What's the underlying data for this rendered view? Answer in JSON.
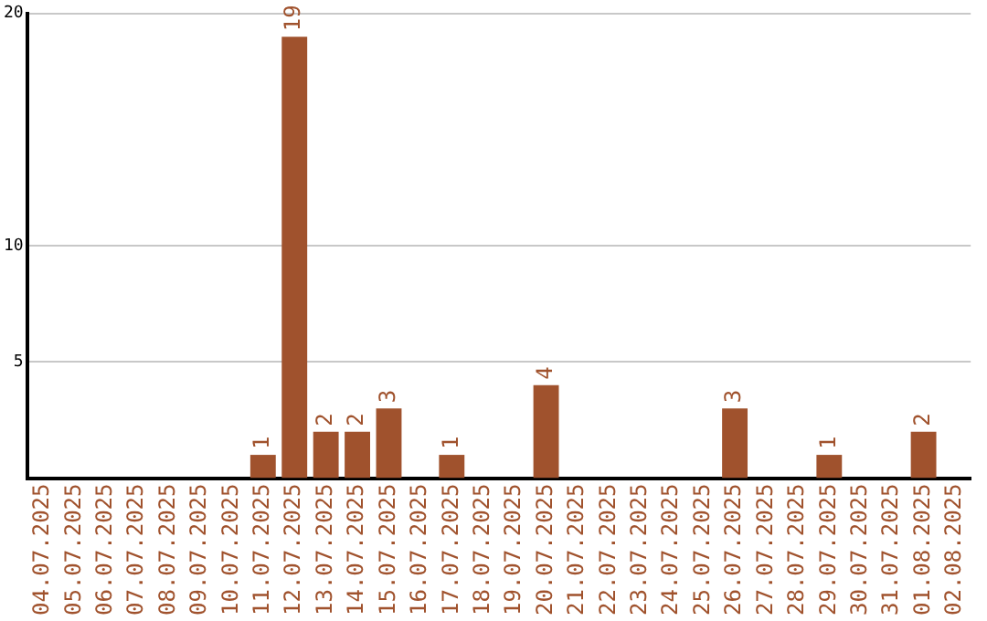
{
  "chart_data": {
    "type": "bar",
    "categories": [
      "04.07.2025",
      "05.07.2025",
      "06.07.2025",
      "07.07.2025",
      "08.07.2025",
      "09.07.2025",
      "10.07.2025",
      "11.07.2025",
      "12.07.2025",
      "13.07.2025",
      "14.07.2025",
      "15.07.2025",
      "16.07.2025",
      "17.07.2025",
      "18.07.2025",
      "19.07.2025",
      "20.07.2025",
      "21.07.2025",
      "22.07.2025",
      "23.07.2025",
      "24.07.2025",
      "25.07.2025",
      "26.07.2025",
      "27.07.2025",
      "28.07.2025",
      "29.07.2025",
      "30.07.2025",
      "31.07.2025",
      "01.08.2025",
      "02.08.2025"
    ],
    "values": [
      0,
      0,
      0,
      0,
      0,
      0,
      0,
      1,
      19,
      2,
      2,
      3,
      0,
      1,
      0,
      0,
      4,
      0,
      0,
      0,
      0,
      0,
      3,
      0,
      0,
      1,
      0,
      0,
      2,
      0
    ],
    "value_labels": [
      null,
      null,
      null,
      null,
      null,
      null,
      null,
      "1",
      "19",
      "2",
      "2",
      "3",
      null,
      "1",
      null,
      null,
      "4",
      null,
      null,
      null,
      null,
      null,
      "3",
      null,
      null,
      "1",
      null,
      null,
      "2",
      null
    ],
    "color": "#a0522d",
    "ylim": [
      0,
      20
    ],
    "yticks": [
      5,
      10,
      20
    ],
    "grid": "y",
    "legend": false
  }
}
